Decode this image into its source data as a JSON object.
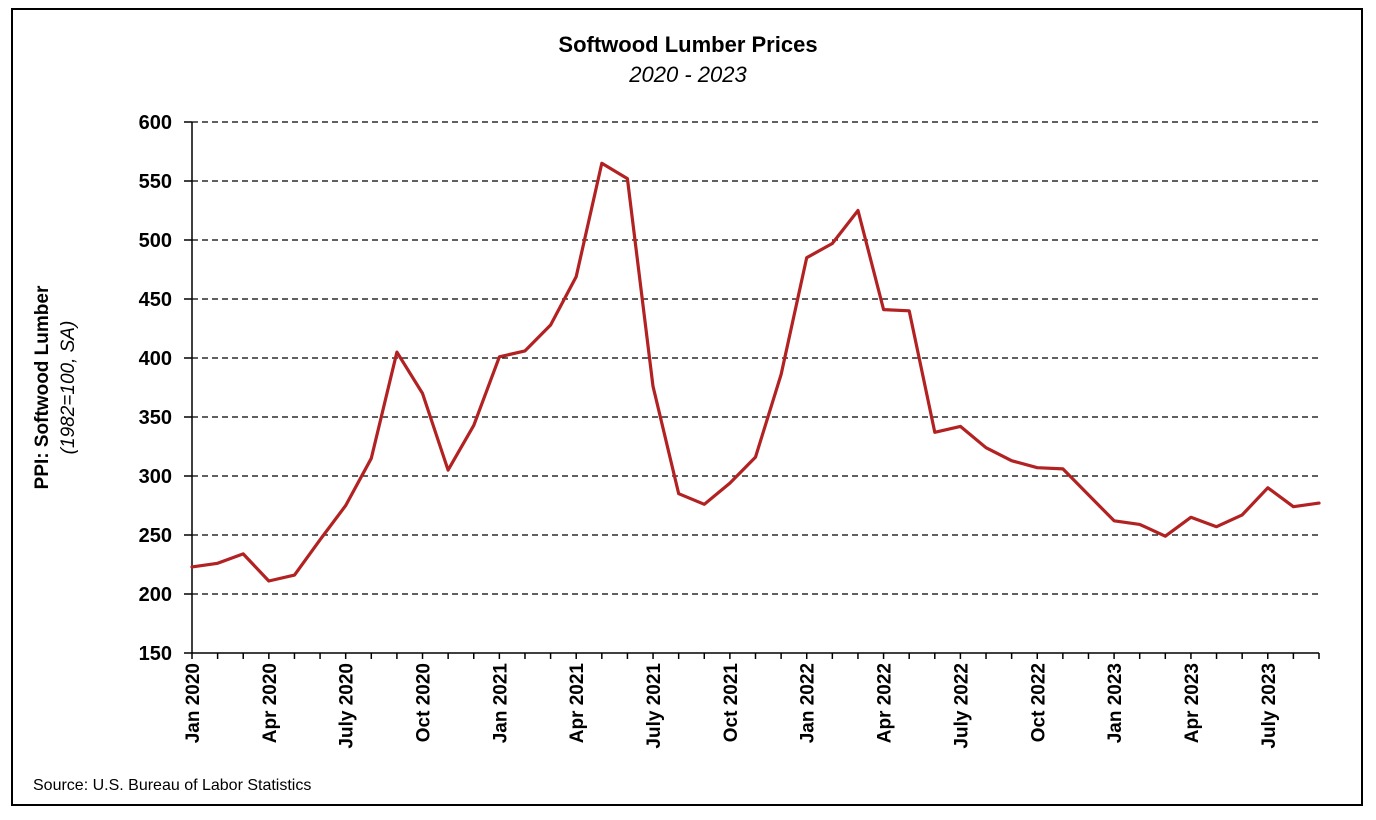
{
  "chart_data": {
    "type": "line",
    "title": "Softwood Lumber Prices",
    "subtitle": "2020 - 2023",
    "ylabel": "PPI: Softwood Lumber",
    "ylabel_sub": "(1982=100, SA)",
    "xlabel": "",
    "source": "Source: U.S. Bureau of Labor Statistics",
    "ylim": [
      150,
      600
    ],
    "yticks": [
      150,
      200,
      250,
      300,
      350,
      400,
      450,
      500,
      550,
      600
    ],
    "grid": "horizontal-dashed",
    "colors": {
      "line": "#b22222",
      "grid": "#000000"
    },
    "x_tick_labels": [
      "Jan 2020",
      "Apr 2020",
      "July 2020",
      "Oct 2020",
      "Jan 2021",
      "Apr 2021",
      "July 2021",
      "Oct 2021",
      "Jan 2022",
      "Apr 2022",
      "July 2022",
      "Oct 2022",
      "Jan 2023",
      "Apr 2023",
      "July 2023"
    ],
    "x": [
      "2020-01",
      "2020-02",
      "2020-03",
      "2020-04",
      "2020-05",
      "2020-06",
      "2020-07",
      "2020-08",
      "2020-09",
      "2020-10",
      "2020-11",
      "2020-12",
      "2021-01",
      "2021-02",
      "2021-03",
      "2021-04",
      "2021-05",
      "2021-06",
      "2021-07",
      "2021-08",
      "2021-09",
      "2021-10",
      "2021-11",
      "2021-12",
      "2022-01",
      "2022-02",
      "2022-03",
      "2022-04",
      "2022-05",
      "2022-06",
      "2022-07",
      "2022-08",
      "2022-09",
      "2022-10",
      "2022-11",
      "2022-12",
      "2023-01",
      "2023-02",
      "2023-03",
      "2023-04",
      "2023-05",
      "2023-06",
      "2023-07",
      "2023-08",
      "2023-09"
    ],
    "series": [
      {
        "values": [
          223,
          226,
          234,
          211,
          216,
          246,
          275,
          315,
          405,
          370,
          305,
          343,
          401,
          406,
          428,
          469,
          565,
          552,
          376,
          285,
          276,
          294,
          316,
          386,
          485,
          497,
          525,
          441,
          440,
          337,
          342,
          324,
          313,
          307,
          306,
          284,
          262,
          259,
          249,
          265,
          257,
          267,
          290,
          274,
          277
        ]
      }
    ]
  }
}
